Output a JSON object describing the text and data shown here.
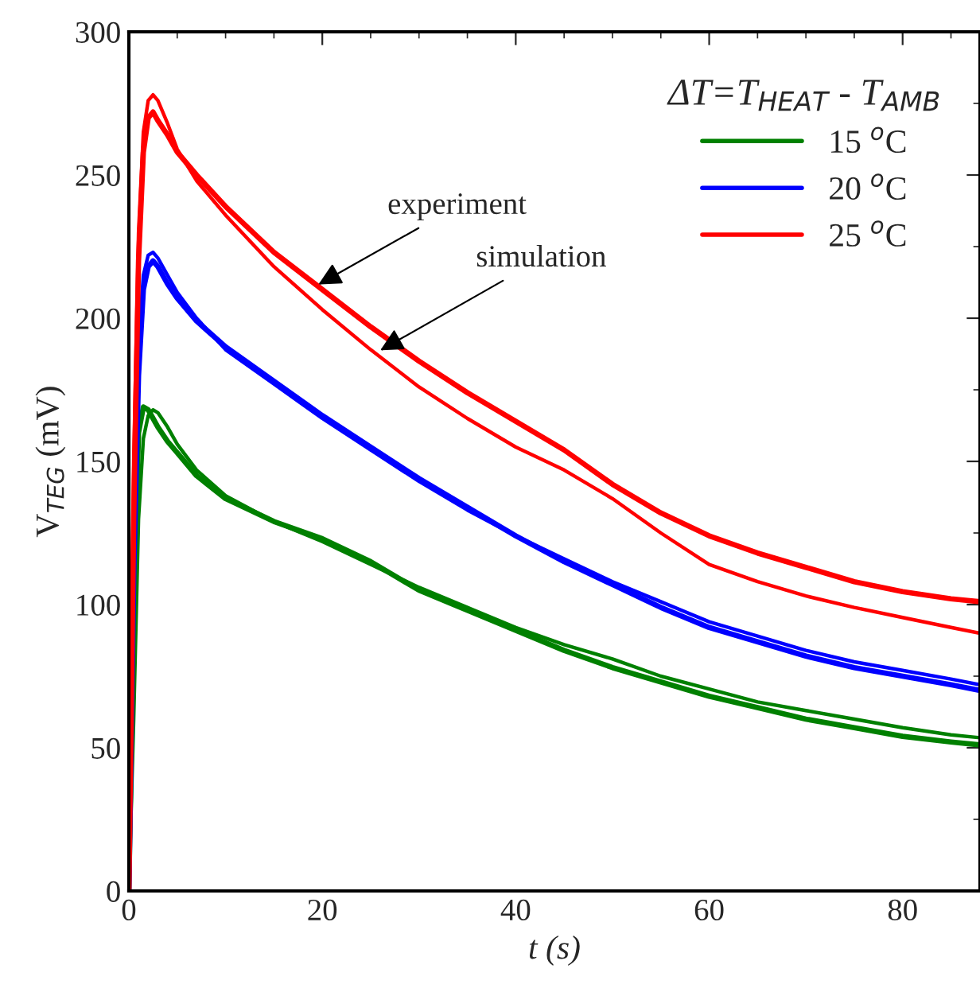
{
  "chart_data": {
    "type": "line",
    "xlabel": "t (s)",
    "ylabel": "V$_{TEG}$ (mV)",
    "legend_title": "ΔT=T$_{HEAT}$ - T$_{AMB}$",
    "xlim": [
      0,
      88
    ],
    "ylim": [
      0,
      300
    ],
    "xticks": [
      0,
      20,
      40,
      60,
      80
    ],
    "yticks": [
      0,
      50,
      100,
      150,
      200,
      250,
      300
    ],
    "grid": false,
    "legend": "top right",
    "marker": "none",
    "line_style": "solid",
    "x": [
      0,
      0.5,
      1,
      1.5,
      2,
      2.5,
      3,
      4,
      5,
      7,
      10,
      15,
      20,
      25,
      30,
      35,
      40,
      45,
      50,
      55,
      60,
      65,
      70,
      75,
      80,
      85,
      88
    ],
    "series": [
      {
        "name": "15 $^{o}$C",
        "color": "#008000",
        "values": [
          0,
          60,
          130,
          158,
          166,
          168,
          167,
          162,
          156,
          147,
          138,
          129,
          122,
          114,
          106,
          99,
          92,
          86,
          81,
          75,
          70.5,
          66,
          63,
          60,
          57,
          54.5,
          53.5
        ]
      },
      {
        "name": "20 $^{o}$C",
        "color": "#0000ff",
        "values": [
          0,
          120,
          190,
          215,
          222,
          223,
          221,
          215,
          209,
          200,
          189,
          177,
          165,
          154,
          143,
          133,
          124,
          116,
          108,
          101,
          94,
          89,
          84,
          80,
          77,
          74,
          72
        ]
      },
      {
        "name": "25 $^{o}$C",
        "color": "#ff0000",
        "values": [
          0,
          150,
          230,
          265,
          276,
          278,
          276,
          268,
          259,
          248,
          236,
          218,
          203,
          189,
          176,
          165,
          155,
          147,
          137,
          125,
          114,
          108,
          103,
          99,
          95.5,
          92,
          90
        ]
      },
      {
        "color": "#008000",
        "values": [
          0,
          100,
          160,
          169,
          168,
          165,
          162,
          157,
          153,
          145,
          137,
          129,
          123,
          115,
          105,
          98,
          91,
          84,
          78,
          73,
          68,
          64,
          60,
          57,
          54,
          52,
          51
        ]
      },
      {
        "color": "#0000ff",
        "values": [
          0,
          110,
          180,
          210,
          218,
          220,
          218,
          212,
          207,
          199,
          190,
          178,
          166,
          155,
          144,
          134,
          124,
          115,
          107,
          99,
          92,
          87,
          82,
          78,
          75,
          72,
          70
        ]
      },
      {
        "color": "#ff0000",
        "values": [
          0,
          130,
          220,
          258,
          270,
          272,
          269,
          264,
          258,
          250,
          239,
          223,
          210,
          197,
          185,
          174,
          164,
          154,
          142,
          132,
          124,
          118,
          113,
          108,
          104.5,
          102,
          101
        ]
      }
    ],
    "annotations": [
      {
        "text": "experiment",
        "x": 19.2,
        "y": 211
      },
      {
        "text": "simulation",
        "x": 25.6,
        "y": 188
      }
    ]
  }
}
